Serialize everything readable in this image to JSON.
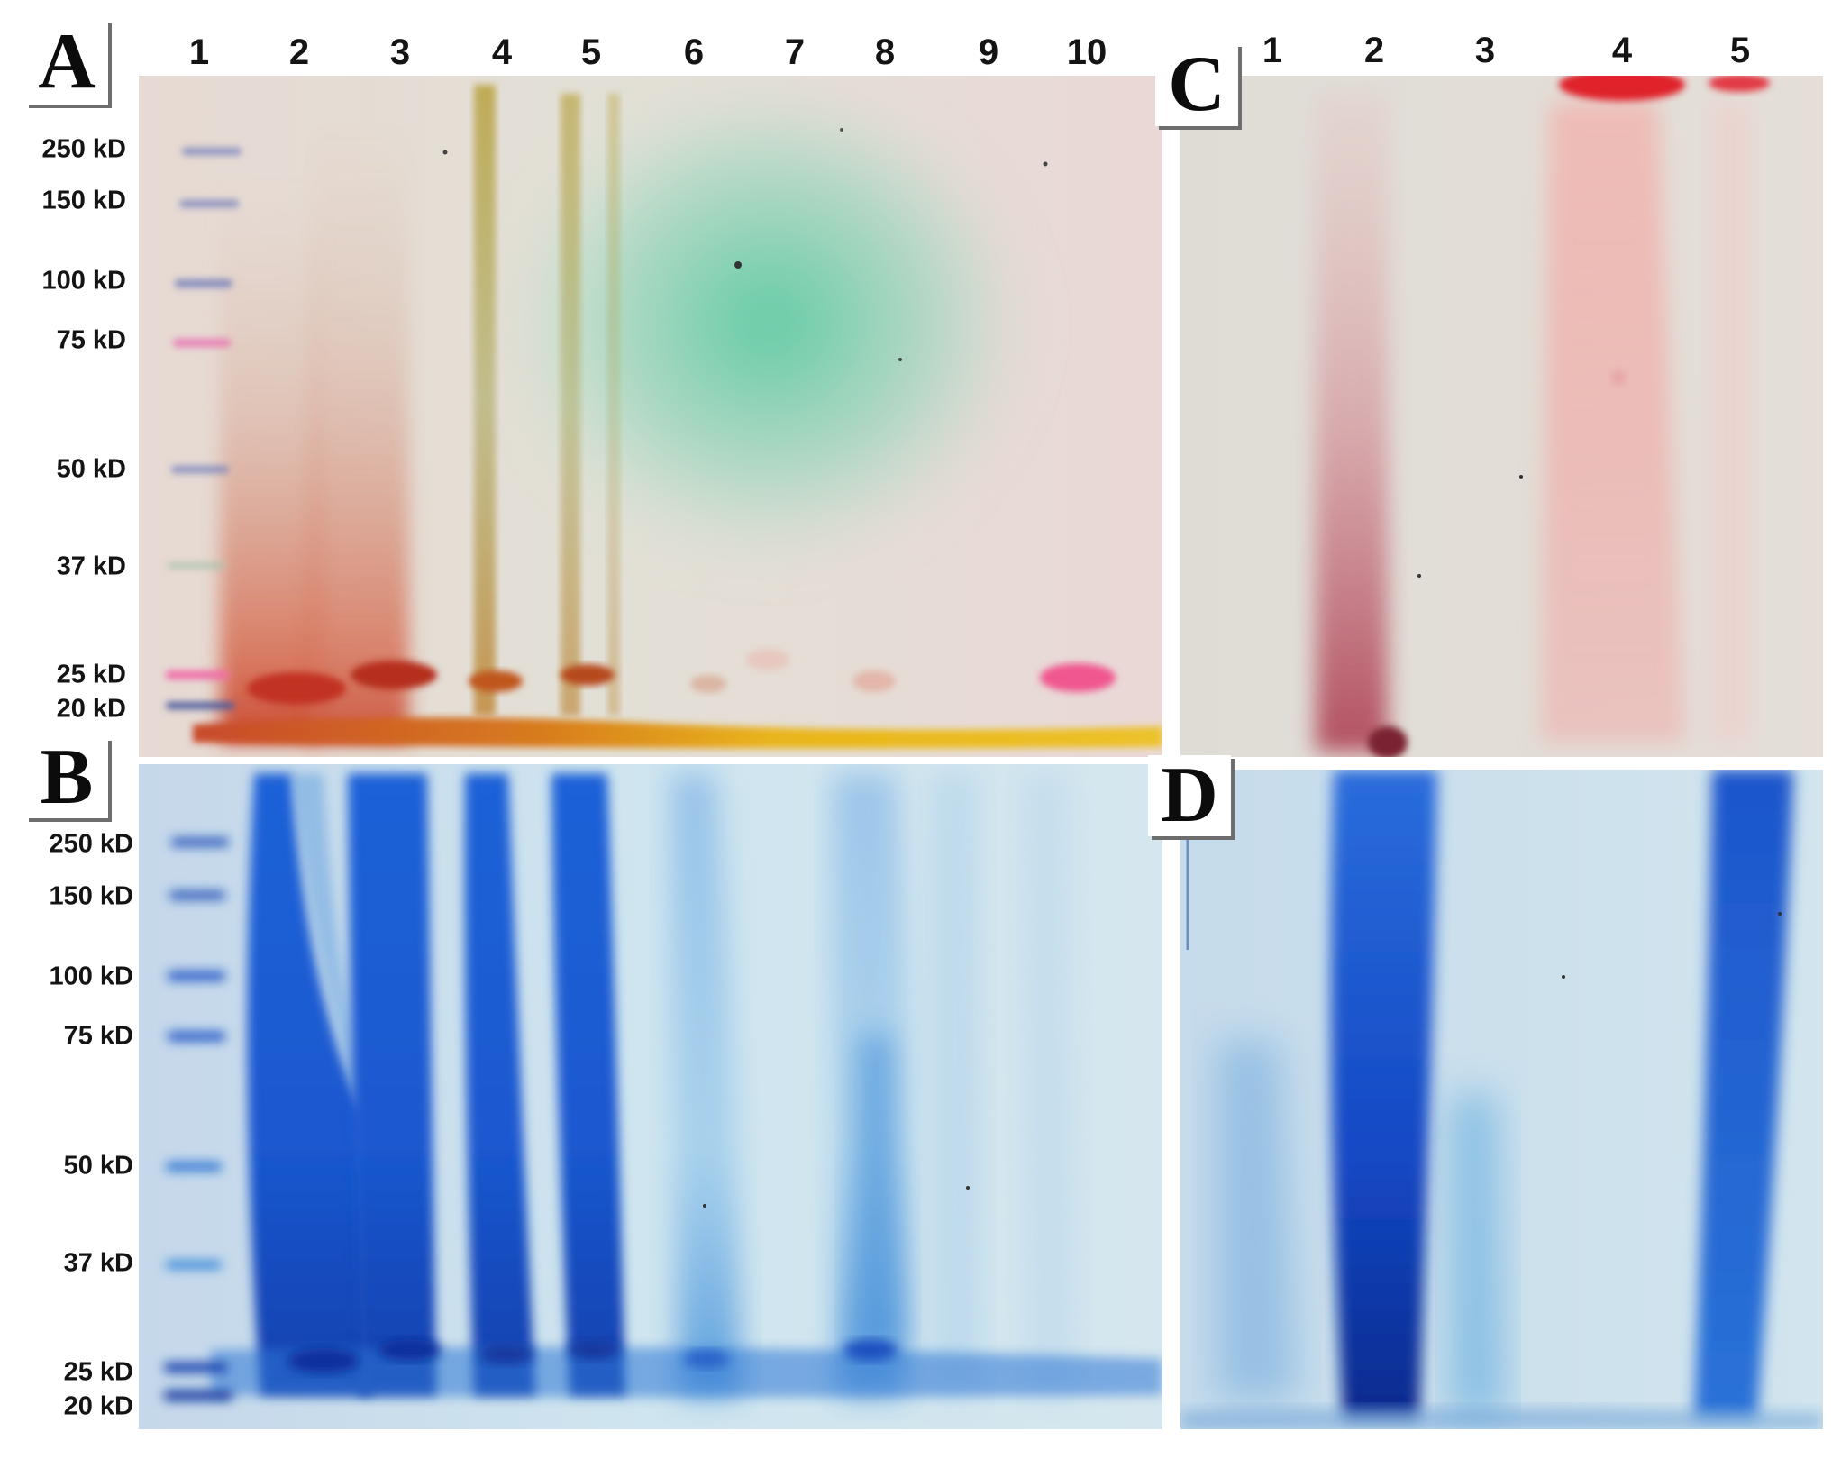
{
  "panels": {
    "A": {
      "letter": "A",
      "lanes": [
        "1",
        "2",
        "3",
        "4",
        "5",
        "6",
        "7",
        "8",
        "9",
        "10"
      ]
    },
    "B": {
      "letter": "B"
    },
    "C": {
      "letter": "C",
      "lanes": [
        "1",
        "2",
        "3",
        "4",
        "5"
      ]
    },
    "D": {
      "letter": "D"
    }
  },
  "markers": [
    "250 kD",
    "150 kD",
    "100 kD",
    "75 kD",
    "50 kD",
    "37 kD",
    "25 kD",
    "20 kD"
  ],
  "colors": {
    "coomassie": "#1c5fd6",
    "coomassie_dark": "#0b2f9c",
    "gel_blue_bg": "#cfe4ef",
    "gel_pink_bg": "#ead7d2",
    "red_dye": "#d23a2c",
    "yellow_front": "#e8b21c",
    "green_haze": "#57c9a0",
    "pink_marker": "#f06aa6"
  }
}
